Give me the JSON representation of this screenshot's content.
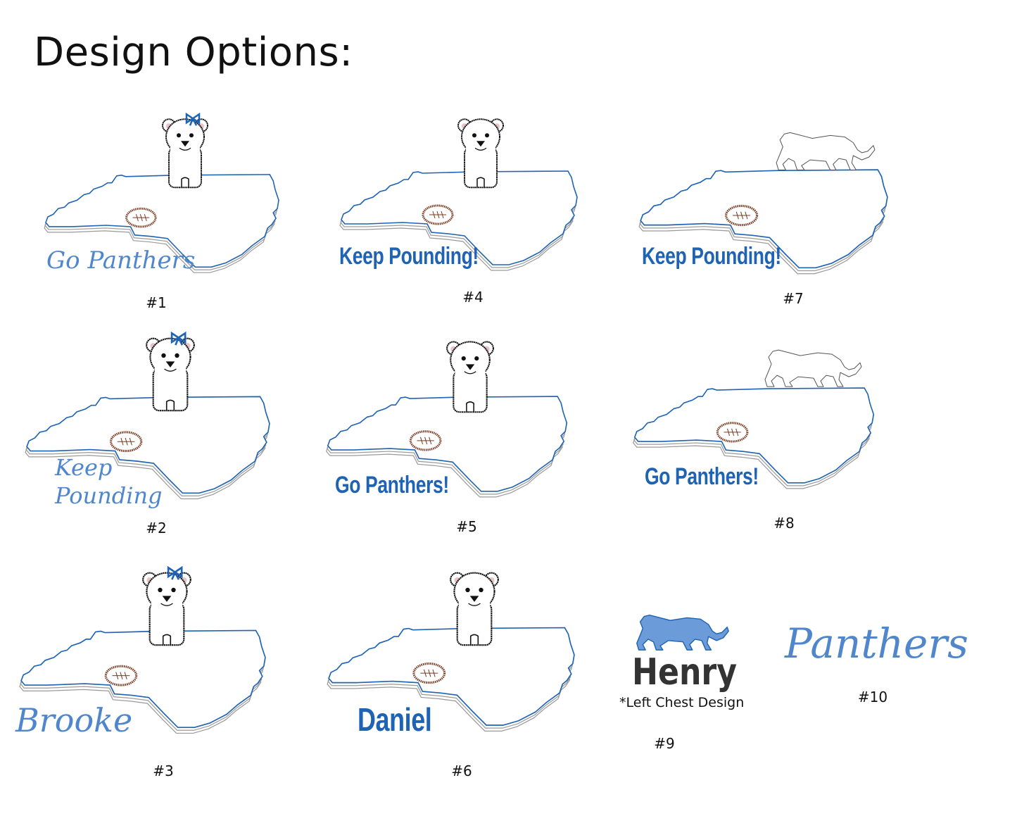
{
  "title": "Design Options:",
  "colors": {
    "blue": "#1f63b5",
    "light_blue": "#5a8fd0",
    "gray": "#9a9a9a",
    "football": "#7a3b22",
    "ear_pink": "#e8c4c8",
    "henry": "#333333"
  },
  "designs": [
    {
      "label": "#1",
      "mascot": "bear-with-bow",
      "text": [
        "Go Panthers"
      ],
      "text_style": "script"
    },
    {
      "label": "#4",
      "mascot": "bear",
      "text": [
        "Keep Pounding!"
      ],
      "text_style": "bold"
    },
    {
      "label": "#7",
      "mascot": "panther-outline",
      "text": [
        "Keep Pounding!"
      ],
      "text_style": "bold"
    },
    {
      "label": "#2",
      "mascot": "bear-with-bow",
      "text": [
        "Keep",
        "Pounding"
      ],
      "text_style": "script"
    },
    {
      "label": "#5",
      "mascot": "bear",
      "text": [
        "Go Panthers!"
      ],
      "text_style": "bold"
    },
    {
      "label": "#8",
      "mascot": "panther-outline",
      "text": [
        "Go Panthers!"
      ],
      "text_style": "bold"
    },
    {
      "label": "#3",
      "mascot": "bear-with-bow",
      "text": [
        "Brooke"
      ],
      "text_style": "script"
    },
    {
      "label": "#6",
      "mascot": "bear",
      "text": [
        "Daniel"
      ],
      "text_style": "bold"
    },
    {
      "label": "#9",
      "mascot": "panther-silhouette",
      "text": [
        "Henry"
      ],
      "note": "*Left Chest Design",
      "text_style": "block"
    },
    {
      "label": "#10",
      "mascot": "none",
      "text": [
        "Panthers"
      ],
      "text_style": "script"
    }
  ]
}
